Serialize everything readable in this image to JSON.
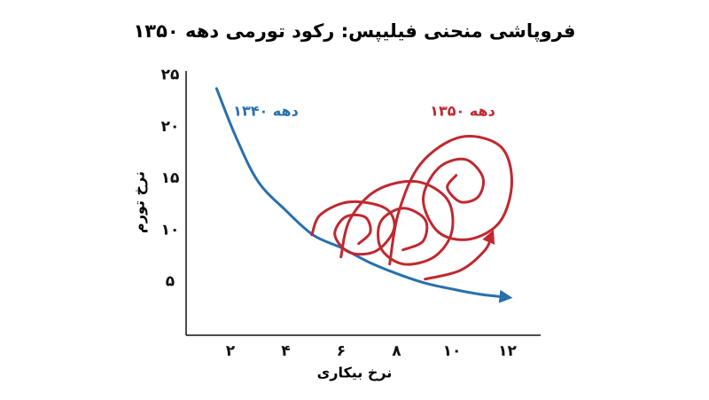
{
  "chart_data": {
    "type": "line",
    "title": "فروپاشی منحنی فیلیپس: رکود تورمی دهه ۱۳۵۰",
    "x_label": "نرخ بیکاری",
    "y_label": "نرخ تورم",
    "xlim": [
      0.4,
      13.2
    ],
    "ylim": [
      0,
      25.4
    ],
    "xticks": [
      {
        "value": 2,
        "label": "۲"
      },
      {
        "value": 4,
        "label": "۴"
      },
      {
        "value": 6,
        "label": "۶"
      },
      {
        "value": 8,
        "label": "۸"
      },
      {
        "value": 10,
        "label": "۱۰"
      },
      {
        "value": 12,
        "label": "۱۲"
      }
    ],
    "yticks": [
      {
        "value": 5,
        "label": "۵"
      },
      {
        "value": 10,
        "label": "۱۰"
      },
      {
        "value": 15,
        "label": "۱۵"
      },
      {
        "value": 20,
        "label": "۲۰"
      },
      {
        "value": 25,
        "label": "۲۵"
      }
    ],
    "series": [
      {
        "name": "دهه ۱۳۴۰",
        "color": "#2a6fad",
        "x": [
          1.5,
          2.2,
          3,
          4,
          5,
          6,
          7,
          8,
          9,
          10,
          11,
          12
        ],
        "values": [
          23.7,
          19,
          14.7,
          11.9,
          9.5,
          8.3,
          6.9,
          5.8,
          4.9,
          4.3,
          3.8,
          3.5
        ]
      },
      {
        "name": "دهه ۱۳۵۰",
        "color": "#c0282f",
        "x": [
          4.94,
          5.26,
          6.31,
          7.59,
          7.91,
          7.27,
          6.31,
          5.77,
          6.15,
          6.86,
          7.05,
          6.63,
          null,
          5.99,
          6.31,
          7.27,
          8.71,
          9.83,
          9.99,
          9.35,
          8.23,
          7.43,
          7.43,
          8.23,
          9.03,
          8.96,
          8.23,
          null,
          7.75,
          8.07,
          8.87,
          10.31,
          11.74,
          12.16,
          11.74,
          10.63,
          9.51,
          8.96,
          9.51,
          10.47,
          11.11,
          10.95,
          10.31,
          9.83,
          10.15,
          null,
          9.03,
          10.31,
          11.2,
          11.43
        ],
        "values": [
          9.55,
          11.52,
          12.73,
          12.12,
          10.15,
          8.0,
          7.83,
          9.55,
          11.27,
          11.27,
          9.81,
          8.69,
          null,
          7.4,
          11.01,
          13.84,
          14.7,
          12.98,
          9.81,
          7.4,
          6.72,
          8.26,
          10.84,
          12.12,
          11.01,
          8.95,
          8.09,
          null,
          6.72,
          11.7,
          16.42,
          19.0,
          18.13,
          14.7,
          10.84,
          9.12,
          9.81,
          12.98,
          16.0,
          16.85,
          15.13,
          13.24,
          12.73,
          14.1,
          15.3,
          null,
          5.26,
          6.12,
          8.09,
          9.55
        ]
      }
    ]
  }
}
